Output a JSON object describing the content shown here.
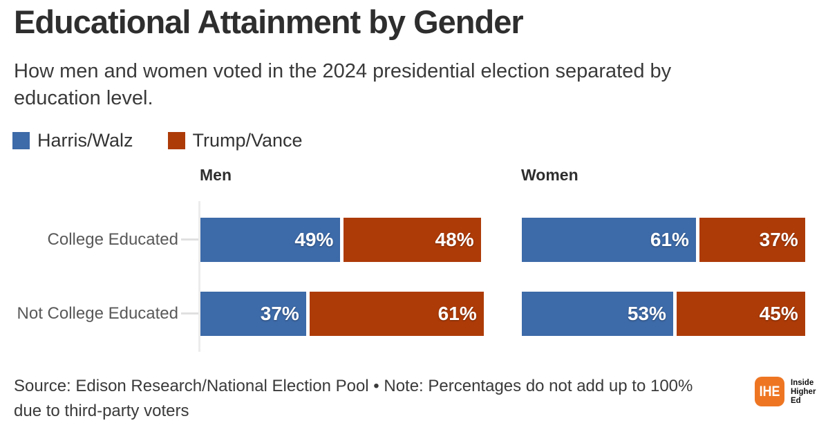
{
  "header": {
    "title": "Educational Attainment by Gender",
    "subtitle_lines": [
      "How men and women voted in the 2024 presidential election separated by",
      "education level."
    ]
  },
  "legend": {
    "items": [
      {
        "label": "Harris/Walz",
        "color": "#3d6aa8"
      },
      {
        "label": "Trump/Vance",
        "color": "#ad3b08"
      }
    ]
  },
  "chart_data": {
    "type": "bar",
    "orientation": "horizontal",
    "stacked": true,
    "unit": "%",
    "grid": false,
    "legend_position": "top-left",
    "value_labels": "inside-end",
    "xlim": [
      0,
      100
    ],
    "categories": [
      "College Educated",
      "Not College Educated"
    ],
    "panels": [
      {
        "title": "Men",
        "series": [
          {
            "name": "Harris/Walz",
            "values": [
              49,
              37
            ]
          },
          {
            "name": "Trump/Vance",
            "values": [
              48,
              61
            ]
          }
        ]
      },
      {
        "title": "Women",
        "series": [
          {
            "name": "Harris/Walz",
            "values": [
              61,
              53
            ]
          },
          {
            "name": "Trump/Vance",
            "values": [
              37,
              45
            ]
          }
        ]
      }
    ]
  },
  "footer": {
    "source_lines": [
      "Source: Edison Research/National Election Pool • Note: Percentages do not add up to 100%",
      "due to third-party voters"
    ],
    "logo": {
      "monogram": "IHE",
      "name_lines": [
        "Inside",
        "Higher",
        "Ed"
      ],
      "color": "#ee7623"
    }
  },
  "colors": {
    "background": "#ffffff",
    "title_text": "#2e2e2e",
    "body_text": "#3a3a3a",
    "row_label_text": "#595959",
    "axis": "#ececec",
    "bar_value_text": "#ffffff"
  }
}
